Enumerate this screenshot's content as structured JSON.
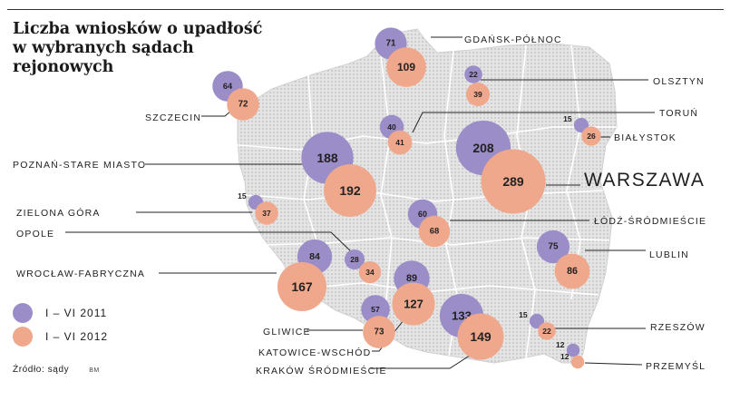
{
  "title_lines": [
    "Liczba wniosków o upadłość",
    "w wybranych sądach",
    "rejonowych"
  ],
  "legend": [
    {
      "label": "I – VI 2011",
      "color": "#9b8dc8"
    },
    {
      "label": "I – VI 2012",
      "color": "#f0a88c"
    }
  ],
  "source": "Źródło: sądy",
  "source_mark": "BM",
  "colors": {
    "series_2011": "#9b8dc8",
    "series_2012": "#f0a88c",
    "map_fill": "#dcdcdc",
    "leader": "#222222"
  },
  "courts": [
    {
      "name": "GDAŃSK-PÓŁNOC",
      "v2011": 71,
      "v2012": 109
    },
    {
      "name": "OLSZTYN",
      "v2011": 22,
      "v2012": 39
    },
    {
      "name": "SZCZECIN",
      "v2011": 64,
      "v2012": 72
    },
    {
      "name": "TORUŃ",
      "v2011": 40,
      "v2012": 41
    },
    {
      "name": "BIAŁYSTOK",
      "v2011": 15,
      "v2012": 26
    },
    {
      "name": "POZNAŃ-STARE MIASTO",
      "v2011": 188,
      "v2012": 192
    },
    {
      "name": "WARSZAWA",
      "v2011": 208,
      "v2012": 289
    },
    {
      "name": "ZIELONA GÓRA",
      "v2011": 15,
      "v2012": 37
    },
    {
      "name": "ŁÓDŹ-ŚRÓDMIEŚCIE",
      "v2011": 60,
      "v2012": 68
    },
    {
      "name": "OPOLE",
      "v2011": 28,
      "v2012": 34
    },
    {
      "name": "LUBLIN",
      "v2011": 75,
      "v2012": 86
    },
    {
      "name": "WROCŁAW-FABRYCZNA",
      "v2011": 84,
      "v2012": 167
    },
    {
      "name": "GLIWICE",
      "v2011": 57,
      "v2012": 73
    },
    {
      "name": "KATOWICE-WSCHÓD",
      "v2011": 89,
      "v2012": 127
    },
    {
      "name": "KRAKÓW ŚRÓDMIEŚCIE",
      "v2011": 133,
      "v2012": 149
    },
    {
      "name": "RZESZÓW",
      "v2011": 15,
      "v2012": 22
    },
    {
      "name": "PRZEMYŚL",
      "v2011": 12,
      "v2012": 12
    }
  ]
}
